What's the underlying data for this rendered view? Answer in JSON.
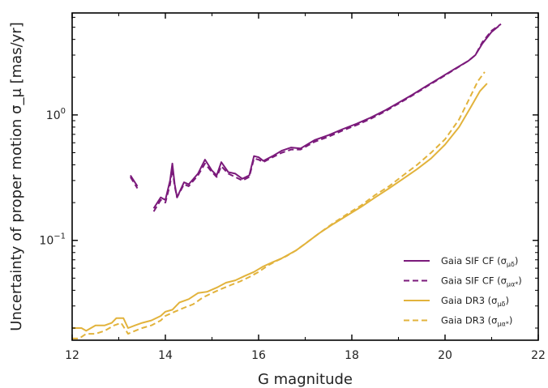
{
  "chart_data": {
    "type": "line",
    "title": "",
    "xlabel": "G magnitude",
    "ylabel": "Uncertainty of proper motion σ_μ [mas/yr]",
    "xlim": [
      12,
      22
    ],
    "ylim": [
      0.016,
      6.5
    ],
    "yscale": "log",
    "grid": false,
    "legend_position": "lower-right",
    "x_ticks": [
      "12",
      "14",
      "16",
      "18",
      "20",
      "22"
    ],
    "y_ticks": [
      {
        "value": 1,
        "base": "10",
        "exp": "0"
      },
      {
        "value": 0.1,
        "base": "10",
        "exp": "−1"
      }
    ],
    "series": [
      {
        "name": "Gaia SIF CF (σ_μδ)",
        "legend_main": "Gaia SIF CF (σ",
        "legend_sub": "μδ",
        "legend_close": ")",
        "color": "#7b1a7b",
        "dash": "solid",
        "segments": [
          [
            [
              13.25,
              0.33
            ],
            [
              13.4,
              0.27
            ]
          ],
          [
            [
              13.75,
              0.18
            ],
            [
              13.9,
              0.22
            ],
            [
              14.0,
              0.21
            ],
            [
              14.1,
              0.3
            ],
            [
              14.15,
              0.41
            ],
            [
              14.2,
              0.28
            ],
            [
              14.25,
              0.22
            ],
            [
              14.4,
              0.29
            ],
            [
              14.5,
              0.28
            ],
            [
              14.7,
              0.34
            ],
            [
              14.85,
              0.44
            ],
            [
              15.0,
              0.36
            ],
            [
              15.1,
              0.33
            ],
            [
              15.2,
              0.42
            ],
            [
              15.35,
              0.35
            ],
            [
              15.5,
              0.34
            ],
            [
              15.65,
              0.31
            ],
            [
              15.8,
              0.33
            ],
            [
              15.9,
              0.47
            ],
            [
              16.0,
              0.46
            ],
            [
              16.1,
              0.43
            ],
            [
              16.3,
              0.47
            ],
            [
              16.5,
              0.52
            ],
            [
              16.7,
              0.55
            ],
            [
              16.9,
              0.54
            ],
            [
              17.2,
              0.63
            ],
            [
              17.5,
              0.69
            ],
            [
              17.8,
              0.77
            ],
            [
              18.1,
              0.85
            ],
            [
              18.4,
              0.95
            ],
            [
              18.7,
              1.08
            ],
            [
              19.0,
              1.25
            ],
            [
              19.3,
              1.45
            ],
            [
              19.6,
              1.7
            ],
            [
              19.9,
              1.98
            ],
            [
              20.2,
              2.32
            ],
            [
              20.5,
              2.7
            ],
            [
              20.65,
              3.0
            ],
            [
              20.8,
              3.7
            ],
            [
              21.0,
              4.6
            ],
            [
              21.15,
              5.1
            ]
          ]
        ]
      },
      {
        "name": "Gaia SIF CF (σ_μα*)",
        "legend_main": "Gaia SIF CF (σ",
        "legend_sub": "μα*",
        "legend_close": ")",
        "color": "#7b1a7b",
        "dash": "dashed",
        "segments": [
          [
            [
              13.25,
              0.32
            ],
            [
              13.4,
              0.26
            ]
          ],
          [
            [
              13.75,
              0.17
            ],
            [
              13.9,
              0.21
            ],
            [
              14.0,
              0.2
            ],
            [
              14.1,
              0.28
            ],
            [
              14.15,
              0.37
            ],
            [
              14.2,
              0.27
            ],
            [
              14.25,
              0.22
            ],
            [
              14.4,
              0.28
            ],
            [
              14.5,
              0.27
            ],
            [
              14.7,
              0.33
            ],
            [
              14.85,
              0.41
            ],
            [
              15.0,
              0.35
            ],
            [
              15.1,
              0.32
            ],
            [
              15.2,
              0.39
            ],
            [
              15.35,
              0.34
            ],
            [
              15.5,
              0.32
            ],
            [
              15.65,
              0.3
            ],
            [
              15.8,
              0.32
            ],
            [
              15.9,
              0.45
            ],
            [
              16.0,
              0.44
            ],
            [
              16.1,
              0.42
            ],
            [
              16.3,
              0.46
            ],
            [
              16.5,
              0.5
            ],
            [
              16.7,
              0.53
            ],
            [
              16.9,
              0.53
            ],
            [
              17.2,
              0.61
            ],
            [
              17.5,
              0.67
            ],
            [
              17.8,
              0.75
            ],
            [
              18.1,
              0.83
            ],
            [
              18.4,
              0.93
            ],
            [
              18.7,
              1.06
            ],
            [
              19.0,
              1.23
            ],
            [
              19.3,
              1.43
            ],
            [
              19.6,
              1.68
            ],
            [
              19.9,
              1.96
            ],
            [
              20.2,
              2.3
            ],
            [
              20.5,
              2.7
            ],
            [
              20.65,
              3.0
            ],
            [
              20.8,
              3.8
            ],
            [
              21.0,
              4.7
            ],
            [
              21.2,
              5.3
            ]
          ]
        ]
      },
      {
        "name": "Gaia DR3 (σ_μδ)",
        "legend_main": "Gaia DR3 (σ",
        "legend_sub": "μδ",
        "legend_close": ")",
        "color": "#e2b33c",
        "dash": "solid",
        "segments": [
          [
            [
              12.0,
              0.02
            ],
            [
              12.2,
              0.02
            ],
            [
              12.3,
              0.019
            ],
            [
              12.5,
              0.021
            ],
            [
              12.7,
              0.021
            ],
            [
              12.85,
              0.022
            ],
            [
              12.95,
              0.024
            ],
            [
              13.1,
              0.024
            ],
            [
              13.2,
              0.02
            ],
            [
              13.35,
              0.021
            ],
            [
              13.5,
              0.022
            ],
            [
              13.7,
              0.023
            ],
            [
              13.9,
              0.025
            ],
            [
              14.0,
              0.027
            ],
            [
              14.15,
              0.028
            ],
            [
              14.3,
              0.032
            ],
            [
              14.5,
              0.034
            ],
            [
              14.7,
              0.038
            ],
            [
              14.9,
              0.039
            ],
            [
              15.1,
              0.042
            ],
            [
              15.3,
              0.046
            ],
            [
              15.5,
              0.048
            ],
            [
              15.7,
              0.052
            ],
            [
              15.9,
              0.056
            ],
            [
              16.1,
              0.062
            ],
            [
              16.3,
              0.067
            ],
            [
              16.5,
              0.072
            ],
            [
              16.8,
              0.083
            ],
            [
              17.0,
              0.094
            ],
            [
              17.3,
              0.114
            ],
            [
              17.6,
              0.135
            ],
            [
              17.9,
              0.158
            ],
            [
              18.2,
              0.185
            ],
            [
              18.5,
              0.22
            ],
            [
              18.8,
              0.26
            ],
            [
              19.1,
              0.31
            ],
            [
              19.4,
              0.37
            ],
            [
              19.7,
              0.45
            ],
            [
              20.0,
              0.58
            ],
            [
              20.3,
              0.8
            ],
            [
              20.55,
              1.15
            ],
            [
              20.75,
              1.55
            ],
            [
              20.9,
              1.78
            ]
          ]
        ]
      },
      {
        "name": "Gaia DR3 (σ_μα*)",
        "legend_main": "Gaia DR3 (σ",
        "legend_sub": "μα*",
        "legend_close": ")",
        "color": "#e2b33c",
        "dash": "dashed",
        "segments": [
          [
            [
              12.0,
              0.0165
            ],
            [
              12.15,
              0.0165
            ],
            [
              12.3,
              0.018
            ],
            [
              12.5,
              0.018
            ],
            [
              12.7,
              0.019
            ],
            [
              12.9,
              0.021
            ],
            [
              13.05,
              0.022
            ],
            [
              13.2,
              0.018
            ],
            [
              13.35,
              0.019
            ],
            [
              13.5,
              0.02
            ],
            [
              13.7,
              0.021
            ],
            [
              13.9,
              0.023
            ],
            [
              14.0,
              0.025
            ],
            [
              14.2,
              0.027
            ],
            [
              14.4,
              0.029
            ],
            [
              14.6,
              0.031
            ],
            [
              14.8,
              0.035
            ],
            [
              15.0,
              0.038
            ],
            [
              15.2,
              0.041
            ],
            [
              15.4,
              0.044
            ],
            [
              15.6,
              0.047
            ],
            [
              15.8,
              0.051
            ],
            [
              16.0,
              0.056
            ],
            [
              16.2,
              0.063
            ],
            [
              16.4,
              0.069
            ],
            [
              16.6,
              0.075
            ],
            [
              16.8,
              0.083
            ],
            [
              17.0,
              0.094
            ],
            [
              17.3,
              0.114
            ],
            [
              17.6,
              0.137
            ],
            [
              17.9,
              0.162
            ],
            [
              18.2,
              0.19
            ],
            [
              18.5,
              0.23
            ],
            [
              18.8,
              0.27
            ],
            [
              19.1,
              0.33
            ],
            [
              19.4,
              0.4
            ],
            [
              19.7,
              0.5
            ],
            [
              20.0,
              0.64
            ],
            [
              20.3,
              0.92
            ],
            [
              20.5,
              1.3
            ],
            [
              20.7,
              1.85
            ],
            [
              20.85,
              2.2
            ]
          ]
        ]
      }
    ]
  }
}
